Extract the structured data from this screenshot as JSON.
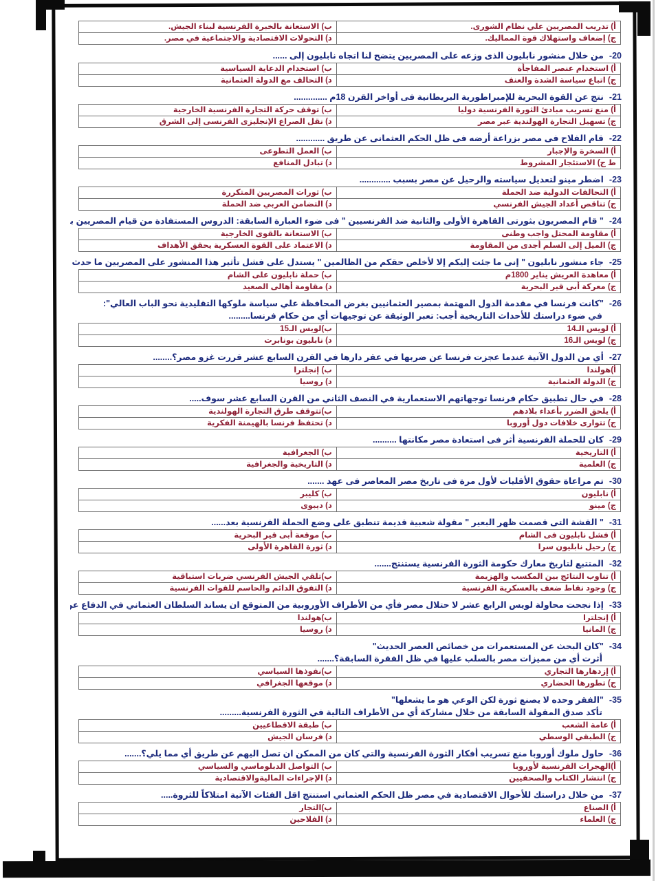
{
  "page": {
    "kind": "scanned-exam-sheet",
    "question_color": "#1d2b7d",
    "option_color": "#8f2236",
    "frame_color": "#0b0b0b",
    "table_border_color": "#6e6e6e",
    "background": "#ffffff"
  },
  "intro_options": [
    "أ) تدريب المصريين علي نظام الشورى.",
    "ب) الاستعانة بالخبرة الفرنسية لبناء الجيش.",
    "ج) إضعاف واستهلاك قوة المماليك.",
    "د) التحولات الاقتصادية والاجتماعية في مصر."
  ],
  "questions": [
    {
      "num": "20-",
      "lines": [
        "من خلال منشور نابليون الذى وزعه على المصريين يتضح لنا اتجاه نابليون إلى ......"
      ],
      "options": [
        "أ) استخدام عنصر المفاجأة",
        "ب) استخدام الدعاية السياسية",
        "ج) اتباع سياسة الشدة والعنف",
        "د) التحالف مع الدولة العثمانية"
      ]
    },
    {
      "num": "21-",
      "lines": [
        "نتج عن القوة البحرية للإمبراطورية البريطانية فى أواخر القرن 18م .............."
      ],
      "options": [
        "أ) منع تسريب مبادئ الثورة الفرنسية دوليا",
        "ب) توقف حركة التجارة الفرنسية الخارجية",
        "ج) تسهيل التجارة الهولندية عبر مصر",
        "د) نقل الصراع الإنجليزى الفرنسى إلى الشرق"
      ]
    },
    {
      "num": "22-",
      "lines": [
        "قام الفلاح فى مصر بزراعة أرضه فى ظل الحكم العثمانى عن طريق ............"
      ],
      "options": [
        "أ) السخرة والإجبار",
        "ب) العمل التطوعى",
        "ط ج) الاستئجار المشروط",
        "د) تبادل المنافع"
      ]
    },
    {
      "num": "23-",
      "lines": [
        "اضطر مينو لتعديل سياسته والرحيل عن مصر بسبب ............."
      ],
      "options": [
        "أ) التحالفات الدولية ضد الحملة",
        "ب) ثورات المصريين المتكررة",
        "ج) تناقص أعداد الجيش الفرنسي",
        "د) التضامن العربي ضد الحملة"
      ]
    },
    {
      "num": "24-",
      "lines": [
        "\" قام المصريون بثورتى القاهرة الأولى والثانية ضد الفرنسيين \" فى ضوء العبارة السابقة: الدروس المستفادة من قيام المصريين بالثورتين ............."
      ],
      "options": [
        "أ) مقاومة المحتل واجب وطنى",
        "ب) الاستعانة بالقوى الخارجية",
        "ج) الميل إلى السلم أجدى من المقاومة",
        "د) الاعتماد على القوة العسكرية يحقق الأهداف"
      ]
    },
    {
      "num": "25-",
      "lines": [
        "جاء منشور نابليون \" إنى ما جئت إليكم إلا لأخلص حقكم من الظالمين \" يستدل على فشل تأثير هذا المنشور على المصريين ما حدث فى ........."
      ],
      "options": [
        "أ) معاهدة العريش يناير 1800م",
        "ب) حملة نابليون على الشام",
        "ج) معركة أبى قير البحرية",
        "د) مقاومة أهالى الصعيد"
      ]
    },
    {
      "num": "26-",
      "lines": [
        "\"كانت فرنسا في مقدمة الدول المهتمة بمصير العثمانيين بغرض المحافظة علي سياسة ملوكها التقليدية نحو الباب العالي\":",
        "في ضوء دراستك للأحداث التاريخية أجب: تعبر الوثيقة عن توجيهات أي من حكام فرنسا........."
      ],
      "options": [
        "أ) لويس الـ14",
        "ب)لويس الـ15",
        "ج) لويس الـ16",
        "د) نابليون بونابرت"
      ]
    },
    {
      "num": "27-",
      "lines": [
        "أي من الدول الآتية عندما عجزت فرنسا عن ضربها في عقر دارها في القرن السابع عشر قررت غزو مصر؟........"
      ],
      "options": [
        "أ)هولندا",
        "ب) إنجلترا",
        "ج) الدولة العثمانية",
        "د) روسيا"
      ]
    },
    {
      "num": "28-",
      "lines": [
        "في حال تطبيق حكام فرنسا توجهاتهم الاستعمارية في النصف الثاني من القرن السابع عشر سوف....."
      ],
      "options": [
        "أ) يلحق الضرر بأعداء بلادهم",
        "ب)تتوقف طرق التجارة الهولندية",
        "ج) تتوارى خلافات دول أوروبا",
        "د) تحتفظ فرنسا بالهيمنة الفكرية"
      ]
    },
    {
      "num": "29-",
      "lines": [
        "كان للحملة الفرنسية أثر فى استعادة مصر مكانتها .........."
      ],
      "options": [
        "أ) التاريخية",
        "ب) الجغرافية",
        "ج) العلمية",
        "د) التاريخية والجغرافية"
      ]
    },
    {
      "num": "30-",
      "lines": [
        "تم مراعاة حقوق الأقليات لأول مرة فى تاريخ مصر المعاصر فى عهد ......."
      ],
      "options": [
        "أ) نابليون",
        "ب) كليبر",
        "ج) مينو",
        "د) ديبوى"
      ]
    },
    {
      "num": "31-",
      "lines": [
        "\" القشة التى قصمت ظهر البعير \" مقولة شعبية قديمة تنطبق على وضع الحملة الفرنسية بعد......"
      ],
      "options": [
        "أ) فشل نابليون فى الشام",
        "ب) موقعة أبى قير البحرية",
        "ج) رحيل نابليون سرا",
        "د) ثورة القاهرة الأولى"
      ]
    },
    {
      "num": "32-",
      "lines": [
        "المتتبع لتاريخ معارك حكومة الثورة الفرنسية يستنتج......."
      ],
      "options": [
        "أ) تناوب النتائج بين المكسب والهزيمة",
        "ب)تلقي الجيش الفرنسي ضربات استباقية",
        "ج) وجود نقاط ضعف بالعسكرية الفرنسية",
        "د) التفوق الدائم والحاسم للقوات الفرنسية"
      ]
    },
    {
      "num": "33-",
      "lines": [
        "إذا نجحت محاولة لويس الرابع عشر لا حتلال مصر فأي من الأطراف الأوروبية من المتوقع ان يساند السلطان العثماني في الدفاع عن مصر......."
      ],
      "options": [
        "أ) إنجلترا",
        "ب)هولندا",
        "ج) المانيا",
        "د) روسيا"
      ]
    },
    {
      "num": "34-",
      "lines": [
        "\"كان البحث عن المستعمرات من خصائص العصر الحديث\"",
        "أثرت أي من مميزات مصر بالسلب عليها في ظل الفقرة السابقة؟......."
      ],
      "options": [
        "أ) إزدهارها التجاري",
        "ب)نفوذها السياسي",
        "ج) تطورها الحضاري",
        "د) موقعها الجغرافي"
      ]
    },
    {
      "num": "35-",
      "lines": [
        "\"الفقر وحده لا يصنع ثورة لكن الوعي هو ما يشعلها\"",
        "تأكد صدق المقولة السابقة من خلال مشاركة أي من الأطراف التالية في الثورة الفرنسية........."
      ],
      "options": [
        "أ) عامة الشعب",
        "ب) طبقة الاقطاعيين",
        "ج) الطبقي الوسطي",
        "د) فرسان الجيش"
      ]
    },
    {
      "num": "36-",
      "lines": [
        "حاول ملوك أوروبا منع تسريب أفكار الثورة الفرنسية والتي كان من الممكن ان تصل اليهم عن طريق أي مما يلي؟......."
      ],
      "options": [
        "أ)الهجرات الفرنسية لأوروبا",
        "ب) التواصل الدبلوماسي والسياسي",
        "ج) انتشار الكتاب والصحفيين",
        "د) الإجراءات الماليةوالاقتصادية"
      ]
    },
    {
      "num": "37-",
      "lines": [
        "من خلال دراستك للأحوال الاقتصادية في مصر ظل الحكم العثماني استنتج اقل الفئات الآتية امتلاكاً للثروة....."
      ],
      "options": [
        "أ) الصناع",
        "ب)التجار",
        "ج) العلماء",
        "د) الفلاحين"
      ]
    }
  ]
}
